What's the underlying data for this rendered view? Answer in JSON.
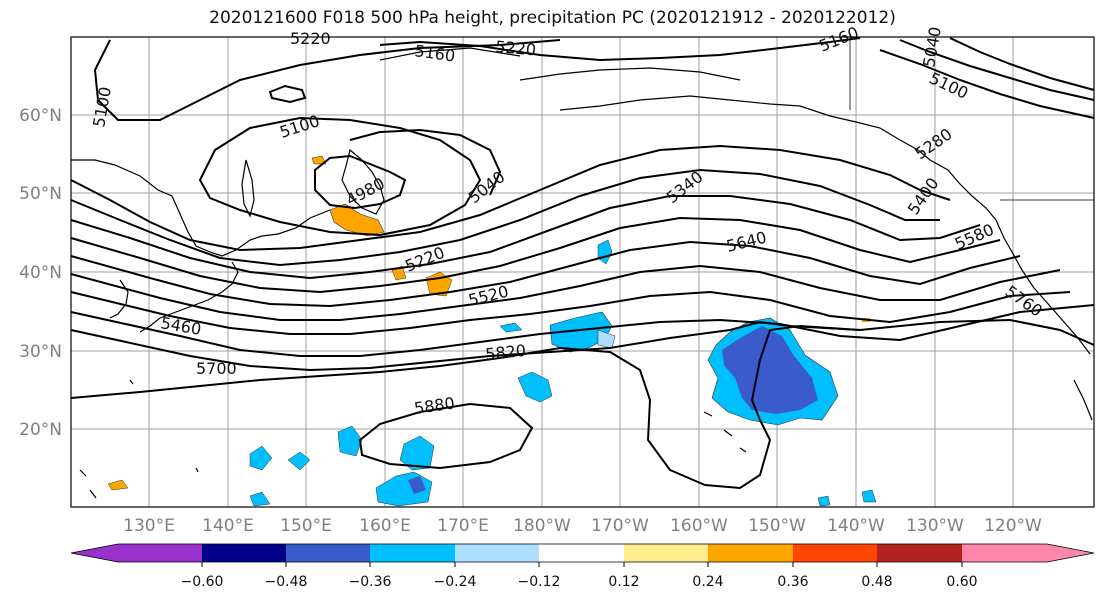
{
  "title": "2020121600 F018 500 hPa height, precipitation PC (2020121912 - 2020122012)",
  "lat_labels": [
    "60°N",
    "50°N",
    "40°N",
    "30°N",
    "20°N"
  ],
  "lon_labels": [
    "130°E",
    "140°E",
    "150°E",
    "160°E",
    "170°E",
    "180°W",
    "170°W",
    "160°W",
    "150°W",
    "140°W",
    "130°W",
    "120°W"
  ],
  "contour_labels": [
    "5220",
    "5160",
    "5220",
    "5160",
    "5100",
    "5040",
    "5100",
    "5100",
    "5040",
    "4980",
    "5220",
    "5340",
    "5280",
    "5400",
    "5640",
    "5580",
    "5520",
    "5460",
    "5760",
    "5820",
    "5700",
    "5880"
  ],
  "colorbar": {
    "ticks": [
      "−0.60",
      "−0.48",
      "−0.36",
      "−0.24",
      "−0.12",
      "0.12",
      "0.24",
      "0.36",
      "0.48",
      "0.60"
    ],
    "colors": [
      "#9932CC",
      "#00008B",
      "#3A5BCB",
      "#00BFFF",
      "#ADDFFF",
      "#FFFFFF",
      "#FFEC8B",
      "#FFA500",
      "#FF4500",
      "#B22222",
      "#FF88AA"
    ]
  },
  "colors": {
    "land": "#000000",
    "grid": "#a0a0a0",
    "contour": "#000000"
  }
}
